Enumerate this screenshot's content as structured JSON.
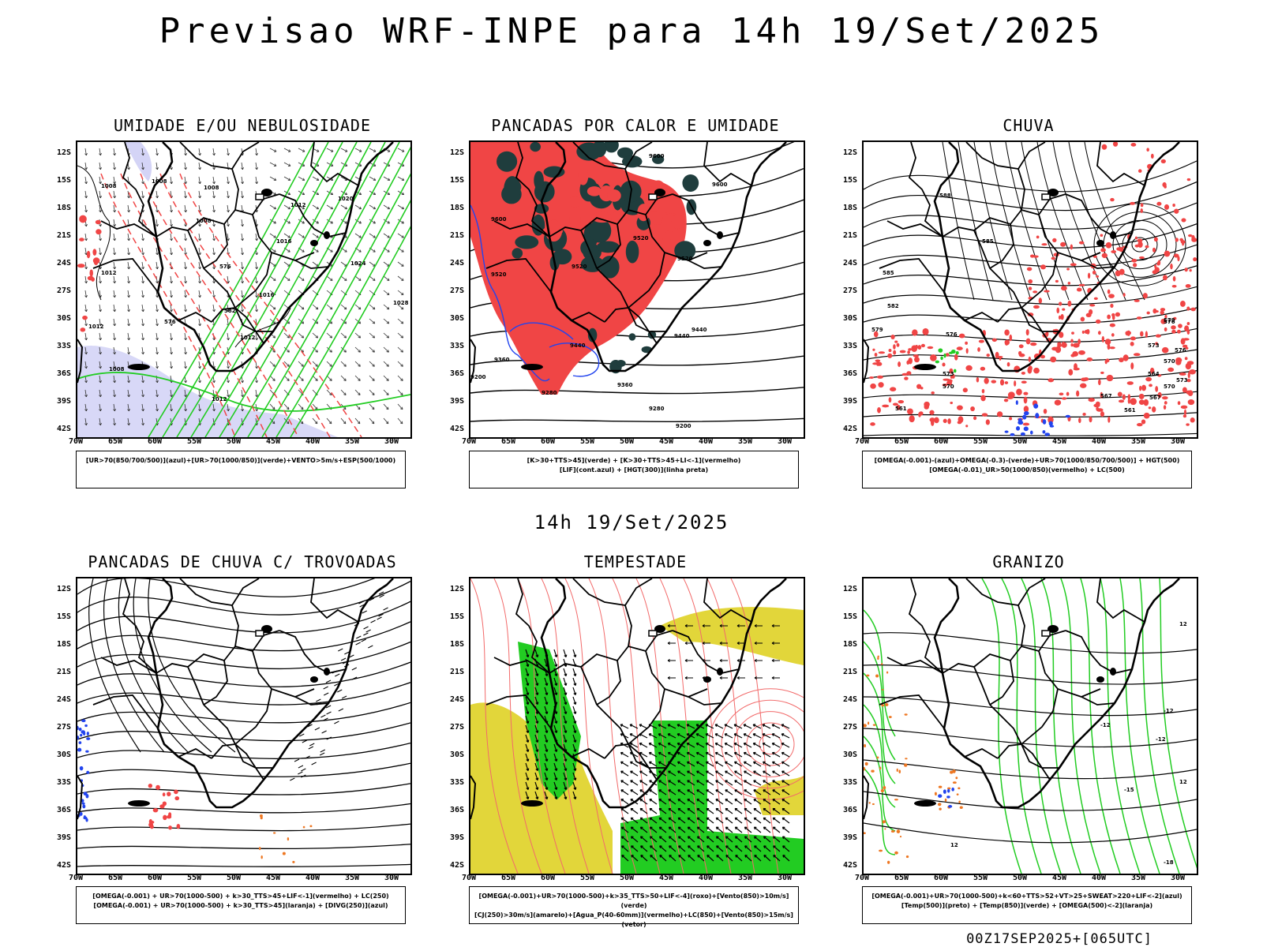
{
  "title": "Previsao WRF-INPE  para 14h 19/Set/2025",
  "mid_title": "14h 19/Set/2025",
  "footer": "00Z17SEP2025+[065UTC]",
  "lat_ticks": [
    "12S",
    "15S",
    "18S",
    "21S",
    "24S",
    "27S",
    "30S",
    "33S",
    "36S",
    "39S",
    "42S"
  ],
  "lon_ticks": [
    "70W",
    "65W",
    "60W",
    "55W",
    "50W",
    "45W",
    "40W",
    "35W",
    "30W"
  ],
  "panels": [
    {
      "title": "UMIDADE E/OU NEBULOSIDADE",
      "legend": [
        "[UR>70(850/700/500)](azul)+[UR>70(1000/850)](verde)+VENTO>5m/s+ESP(500/1000)"
      ]
    },
    {
      "title": "PANCADAS POR CALOR E UMIDADE",
      "legend": [
        "[K>30+TTS>45](verde) + [K>30+TTS>45+LI<-1](vermelho)",
        "[LIF](cont.azul) + [HGT(300)](linha preta)"
      ]
    },
    {
      "title": "CHUVA",
      "legend": [
        "[OMEGA(-0.001)-(azul)+OMEGA(-0.3)-(verde)+UR>70(1000/850/700/500)] + HGT(500)",
        "[OMEGA(-0.01)_UR>50(1000/850)(vermelho) + LC(500)"
      ]
    },
    {
      "title": "PANCADAS DE CHUVA C/ TROVOADAS",
      "legend": [
        "[OMEGA(-0.001) + UR>70(1000-500) + k>30_TTS>45+LIF<-1](vermelho) + LC(250)",
        "[OMEGA(-0.001) + UR>70(1000-500) + k>30_TTS>45](laranja) + [DIVG(250)](azul)"
      ]
    },
    {
      "title": "TEMPESTADE",
      "legend": [
        "[OMEGA(-0.001)+UR>70(1000-500)+k>35_TTS>50+LIF<-4](roxo)+[Vento(850)>10m/s](verde)",
        "[CJ(250)>30m/s](amarelo)+[Agua_P(40-60mm)](vermelho)+LC(850)+[Vento(850)>15m/s](vetor)"
      ]
    },
    {
      "title": "GRANIZO",
      "legend": [
        "[OMEGA(-0.001)+UR>70(1000-500)+k<60+TTS>52+VT>25+SWEAT>220+LIF<-2](azul)",
        "[Temp(500)](preto) + [Temp(850)](verde) + [OMEGA(500)<-2](laranja)"
      ]
    }
  ],
  "contour_labels": {
    "p1": [
      "1008",
      "1008",
      "1008",
      "1008",
      "1012",
      "1012",
      "1016",
      "1016",
      "1020",
      "1024",
      "1028",
      "1012",
      "1008",
      "1012",
      "1012",
      "576",
      "576",
      "582"
    ],
    "p2": [
      "9600",
      "9600",
      "9600",
      "9520",
      "9520",
      "9520",
      "9520",
      "9440",
      "9440",
      "9440",
      "9360",
      "9360",
      "9280",
      "9280",
      "9200",
      "9200"
    ],
    "p3": [
      "588",
      "585",
      "585",
      "582",
      "579",
      "576",
      "576",
      "573",
      "573",
      "570",
      "570",
      "567",
      "564",
      "561",
      "561",
      "579",
      "576",
      "573",
      "570",
      "567"
    ],
    "p6": [
      "-12",
      "-12",
      "-12",
      "-15",
      "12",
      "12",
      "12",
      "-18"
    ]
  },
  "colors": {
    "red": "#f04545",
    "green": "#22cc22",
    "blue": "#2244ee",
    "lavender": "#b8b8f0",
    "dark_teal": "#1f3d3d",
    "yellow": "#e2d63a",
    "orange": "#ee7722",
    "light_red": "#f26a6a"
  }
}
